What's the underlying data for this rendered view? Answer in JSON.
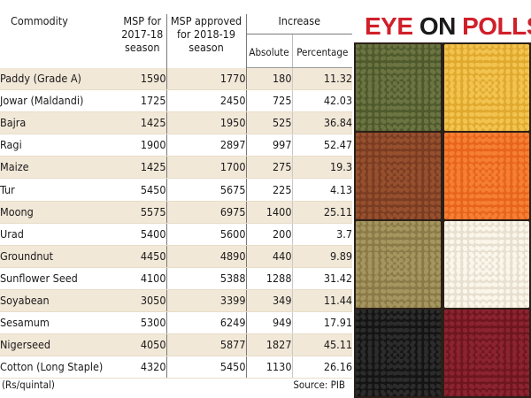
{
  "headers": {
    "commodity": "Commodity",
    "msp_2017_line1": "MSP for",
    "msp_2017_line2": "2017-18",
    "msp_2017_line3": "season",
    "msp_2018_line1": "MSP approved",
    "msp_2018_line2": "for 2018-19",
    "msp_2018_line3": "season",
    "increase": "Increase",
    "absolute": "Absolute",
    "percentage": "Percentage"
  },
  "rows": [
    {
      "commodity": "Paddy (Grade A)",
      "msp_2017_18": "1590",
      "msp_2018_19": "1770",
      "absolute": "180",
      "percentage": "11.32"
    },
    {
      "commodity": "Jowar (Maldandi)",
      "msp_2017_18": "1725",
      "msp_2018_19": "2450",
      "absolute": "725",
      "percentage": "42.03"
    },
    {
      "commodity": "Bajra",
      "msp_2017_18": "1425",
      "msp_2018_19": "1950",
      "absolute": "525",
      "percentage": "36.84"
    },
    {
      "commodity": "Ragi",
      "msp_2017_18": "1900",
      "msp_2018_19": "2897",
      "absolute": "997",
      "percentage": "52.47"
    },
    {
      "commodity": "Maize",
      "msp_2017_18": "1425",
      "msp_2018_19": "1700",
      "absolute": "275",
      "percentage": "19.3"
    },
    {
      "commodity": "Tur",
      "msp_2017_18": "5450",
      "msp_2018_19": "5675",
      "absolute": "225",
      "percentage": "4.13"
    },
    {
      "commodity": "Moong",
      "msp_2017_18": "5575",
      "msp_2018_19": "6975",
      "absolute": "1400",
      "percentage": "25.11"
    },
    {
      "commodity": "Urad",
      "msp_2017_18": "5400",
      "msp_2018_19": "5600",
      "absolute": "200",
      "percentage": "3.7"
    },
    {
      "commodity": "Groundnut",
      "msp_2017_18": "4450",
      "msp_2018_19": "4890",
      "absolute": "440",
      "percentage": "9.89"
    },
    {
      "commodity": "Sunflower Seed",
      "msp_2017_18": "4100",
      "msp_2018_19": "5388",
      "absolute": "1288",
      "percentage": "31.42"
    },
    {
      "commodity": "Soyabean",
      "msp_2017_18": "3050",
      "msp_2018_19": "3399",
      "absolute": "349",
      "percentage": "11.44"
    },
    {
      "commodity": "Sesamum",
      "msp_2017_18": "5300",
      "msp_2018_19": "6249",
      "absolute": "949",
      "percentage": "17.91"
    },
    {
      "commodity": "Nigerseed",
      "msp_2017_18": "4050",
      "msp_2018_19": "5877",
      "absolute": "1827",
      "percentage": "45.11"
    },
    {
      "commodity": "Cotton (Long Staple)",
      "msp_2017_18": "4320",
      "msp_2018_19": "5450",
      "absolute": "1130",
      "percentage": "26.16"
    }
  ],
  "footer": {
    "unit": "(Rs/quintal)",
    "source": "Source: PIB"
  },
  "banner": {
    "word1": "EYE",
    "word2": "ON",
    "word3": "POLLS"
  },
  "colors": {
    "title_red": "#d0202a",
    "row_shade": "#f2e8d8"
  },
  "grain_grid": [
    {
      "name": "dark-green-lentils",
      "base": "#4f5a2c",
      "dot": "#6b7442"
    },
    {
      "name": "yellow-split-peas",
      "base": "#e0a92e",
      "dot": "#f2c34f"
    },
    {
      "name": "brown-lentils",
      "base": "#7a3c22",
      "dot": "#96502e"
    },
    {
      "name": "red-lentils",
      "base": "#e8641d",
      "dot": "#f57f33"
    },
    {
      "name": "green-lentils",
      "base": "#8a7a48",
      "dot": "#a5965f"
    },
    {
      "name": "white-beans",
      "base": "#e7dfcf",
      "dot": "#fbf6ea"
    },
    {
      "name": "black-beans",
      "base": "#141414",
      "dot": "#2c2c2c"
    },
    {
      "name": "red-kidney-beans",
      "base": "#6e1620",
      "dot": "#8c2330"
    }
  ]
}
